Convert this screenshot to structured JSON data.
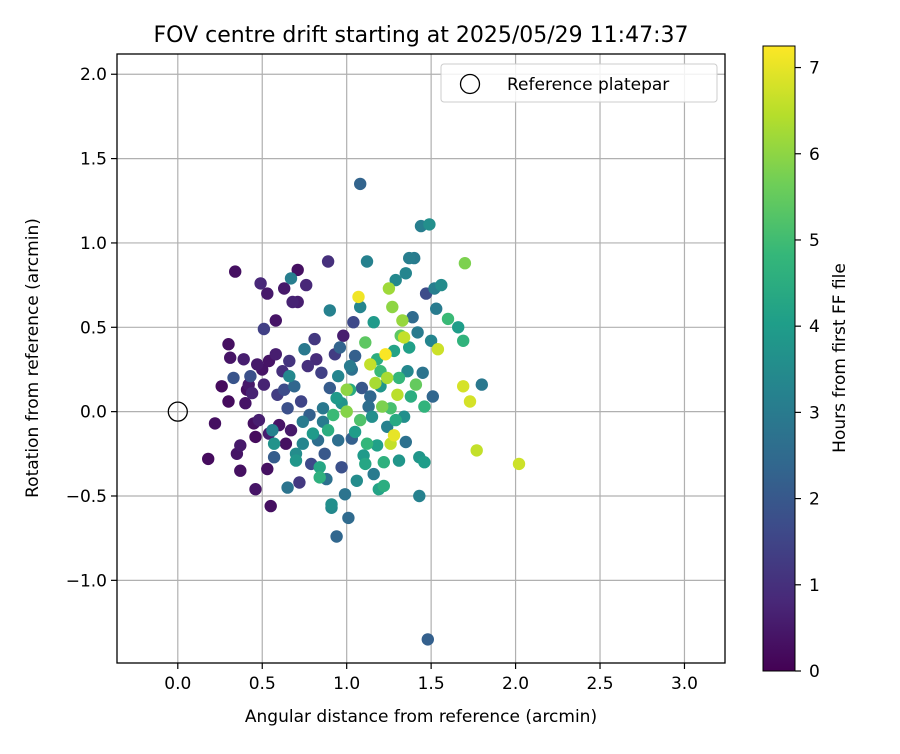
{
  "chart_data": {
    "type": "scatter",
    "title": "FOV centre drift starting at 2025/05/29 11:47:37",
    "xlabel": "Angular distance from reference (arcmin)",
    "ylabel": "Rotation from reference (arcmin)",
    "xlim": [
      -0.36,
      3.24
    ],
    "ylim": [
      -1.49,
      2.12
    ],
    "x_ticks": [
      "0.0",
      "0.5",
      "1.0",
      "1.5",
      "2.0",
      "2.5",
      "3.0"
    ],
    "x_tick_values": [
      0,
      0.5,
      1,
      1.5,
      2,
      2.5,
      3
    ],
    "y_ticks": [
      "−1.0",
      "−0.5",
      "0.0",
      "0.5",
      "1.0",
      "1.5",
      "2.0"
    ],
    "y_tick_values": [
      -1,
      -0.5,
      0,
      0.5,
      1,
      1.5,
      2
    ],
    "grid": true,
    "legend": {
      "entry": "Reference platepar",
      "marker": "open-circle",
      "placement": "top-right"
    },
    "reference": {
      "x": 0.0,
      "y": 0.0
    },
    "colorbar": {
      "label": "Hours from first FF file",
      "colormap": "viridis",
      "range": [
        0,
        7.25
      ],
      "ticks": [
        "0",
        "1",
        "2",
        "3",
        "4",
        "5",
        "6",
        "7"
      ],
      "tick_values": [
        0,
        1,
        2,
        3,
        4,
        5,
        6,
        7
      ],
      "stops": [
        "#440154",
        "#482878",
        "#3e4989",
        "#31688e",
        "#26828e",
        "#1f9e89",
        "#35b779",
        "#6ece58",
        "#b5de2b",
        "#fde725"
      ]
    },
    "points": [
      [
        0.18,
        -0.28,
        0.2
      ],
      [
        0.22,
        -0.07,
        0.3
      ],
      [
        0.26,
        0.15,
        0.2
      ],
      [
        0.3,
        0.4,
        0.3
      ],
      [
        0.31,
        0.32,
        0.4
      ],
      [
        0.3,
        0.06,
        0.2
      ],
      [
        0.33,
        0.2,
        1.9
      ],
      [
        0.34,
        0.83,
        0.3
      ],
      [
        0.35,
        -0.25,
        0.4
      ],
      [
        0.37,
        -0.2,
        0.5
      ],
      [
        0.37,
        -0.35,
        0.3
      ],
      [
        0.39,
        0.31,
        0.6
      ],
      [
        0.4,
        0.05,
        0.4
      ],
      [
        0.41,
        0.13,
        0.3
      ],
      [
        0.42,
        0.16,
        0.5
      ],
      [
        0.43,
        0.21,
        1.8
      ],
      [
        0.44,
        0.11,
        0.7
      ],
      [
        0.45,
        -0.07,
        0.3
      ],
      [
        0.46,
        -0.46,
        0.4
      ],
      [
        0.46,
        -0.15,
        0.2
      ],
      [
        0.47,
        0.28,
        0.5
      ],
      [
        0.48,
        -0.05,
        0.6
      ],
      [
        0.49,
        0.76,
        0.8
      ],
      [
        0.5,
        0.25,
        0.4
      ],
      [
        0.51,
        0.16,
        0.7
      ],
      [
        0.51,
        0.49,
        1.4
      ],
      [
        0.53,
        0.7,
        0.5
      ],
      [
        0.53,
        -0.34,
        0.3
      ],
      [
        0.54,
        0.3,
        0.4
      ],
      [
        0.54,
        -0.13,
        0.6
      ],
      [
        0.55,
        -0.56,
        0.3
      ],
      [
        0.56,
        -0.11,
        3.2
      ],
      [
        0.57,
        -0.19,
        3.7
      ],
      [
        0.57,
        -0.27,
        2.1
      ],
      [
        0.58,
        0.54,
        0.4
      ],
      [
        0.58,
        0.34,
        0.6
      ],
      [
        0.59,
        0.1,
        1.3
      ],
      [
        0.6,
        -0.08,
        0.4
      ],
      [
        0.62,
        0.24,
        1.0
      ],
      [
        0.63,
        0.73,
        0.5
      ],
      [
        0.63,
        0.13,
        1.7
      ],
      [
        0.64,
        -0.19,
        0.3
      ],
      [
        0.65,
        0.02,
        1.8
      ],
      [
        0.65,
        -0.45,
        2.8
      ],
      [
        0.66,
        0.3,
        1.1
      ],
      [
        0.66,
        0.21,
        3.4
      ],
      [
        0.67,
        -0.11,
        0.5
      ],
      [
        0.67,
        0.79,
        3.1
      ],
      [
        0.68,
        0.65,
        0.7
      ],
      [
        0.69,
        0.15,
        2.4
      ],
      [
        0.7,
        -0.25,
        3.5
      ],
      [
        0.7,
        -0.29,
        3.8
      ],
      [
        0.71,
        0.65,
        0.6
      ],
      [
        0.71,
        0.84,
        0.3
      ],
      [
        0.72,
        -0.42,
        1.2
      ],
      [
        0.73,
        0.06,
        1.5
      ],
      [
        0.74,
        -0.19,
        3.3
      ],
      [
        0.75,
        0.37,
        2.9
      ],
      [
        0.76,
        0.75,
        0.8
      ],
      [
        0.77,
        0.27,
        1.0
      ],
      [
        0.78,
        -0.02,
        2.2
      ],
      [
        0.79,
        -0.31,
        1.6
      ],
      [
        0.8,
        -0.13,
        3.9
      ],
      [
        0.81,
        0.43,
        1.2
      ],
      [
        0.82,
        0.31,
        0.9
      ],
      [
        0.83,
        -0.17,
        2.6
      ],
      [
        0.84,
        -0.33,
        4.3
      ],
      [
        0.84,
        -0.39,
        4.6
      ],
      [
        0.85,
        0.23,
        1.4
      ],
      [
        0.86,
        -0.06,
        3.0
      ],
      [
        0.87,
        -0.25,
        2.0
      ],
      [
        0.88,
        -0.4,
        2.7
      ],
      [
        0.89,
        0.89,
        1.0
      ],
      [
        0.9,
        0.14,
        2.1
      ],
      [
        0.9,
        0.6,
        3.2
      ],
      [
        0.91,
        -0.55,
        3.6
      ],
      [
        0.91,
        -0.57,
        3.4
      ],
      [
        0.92,
        -0.02,
        4.9
      ],
      [
        0.93,
        0.34,
        1.3
      ],
      [
        0.94,
        0.08,
        3.9
      ],
      [
        0.94,
        -0.74,
        2.4
      ],
      [
        0.95,
        -0.17,
        2.6
      ],
      [
        0.96,
        0.38,
        2.3
      ],
      [
        0.97,
        -0.33,
        1.8
      ],
      [
        0.98,
        0.45,
        0.6
      ],
      [
        0.99,
        -0.49,
        2.8
      ],
      [
        1.0,
        0.13,
        6.0
      ],
      [
        1.0,
        0.0,
        5.9
      ],
      [
        1.01,
        -0.63,
        2.5
      ],
      [
        1.02,
        0.27,
        3.0
      ],
      [
        1.03,
        -0.16,
        2.2
      ],
      [
        1.04,
        0.53,
        1.6
      ],
      [
        1.05,
        0.33,
        2.2
      ],
      [
        1.06,
        -0.41,
        3.5
      ],
      [
        1.07,
        0.68,
        7.1
      ],
      [
        1.08,
        1.35,
        2.3
      ],
      [
        1.08,
        0.62,
        3.3
      ],
      [
        1.09,
        0.14,
        2.0
      ],
      [
        1.1,
        -0.26,
        3.9
      ],
      [
        1.11,
        0.41,
        5.4
      ],
      [
        1.12,
        0.89,
        3.2
      ],
      [
        1.12,
        -0.19,
        4.8
      ],
      [
        1.13,
        0.03,
        2.6
      ],
      [
        1.14,
        0.28,
        6.6
      ],
      [
        1.15,
        -0.03,
        3.6
      ],
      [
        1.16,
        0.53,
        3.9
      ],
      [
        1.17,
        0.17,
        6.3
      ],
      [
        1.18,
        -0.2,
        4.1
      ],
      [
        1.19,
        -0.46,
        4.2
      ],
      [
        1.2,
        0.24,
        4.9
      ],
      [
        1.21,
        0.03,
        5.8
      ],
      [
        1.22,
        -0.44,
        4.5
      ],
      [
        1.23,
        0.34,
        7.2
      ],
      [
        1.24,
        0.2,
        6.3
      ],
      [
        1.25,
        0.73,
        6.2
      ],
      [
        1.26,
        -0.19,
        6.6
      ],
      [
        1.27,
        0.62,
        6.0
      ],
      [
        1.28,
        -0.14,
        7.0
      ],
      [
        1.29,
        0.78,
        3.4
      ],
      [
        1.3,
        0.1,
        6.5
      ],
      [
        1.31,
        -0.29,
        3.8
      ],
      [
        1.32,
        0.45,
        5.4
      ],
      [
        1.33,
        0.54,
        6.1
      ],
      [
        1.34,
        0.44,
        6.6
      ],
      [
        1.35,
        0.82,
        3.3
      ],
      [
        1.36,
        0.24,
        3.4
      ],
      [
        1.37,
        0.91,
        3.1
      ],
      [
        1.38,
        0.09,
        4.5
      ],
      [
        1.39,
        0.56,
        2.5
      ],
      [
        1.4,
        0.91,
        3.0
      ],
      [
        1.41,
        0.16,
        5.5
      ],
      [
        1.42,
        0.47,
        3.0
      ],
      [
        1.43,
        -0.5,
        3.2
      ],
      [
        1.43,
        -0.27,
        3.8
      ],
      [
        1.44,
        1.1,
        3.1
      ],
      [
        1.45,
        0.23,
        2.8
      ],
      [
        1.46,
        0.03,
        4.7
      ],
      [
        1.47,
        0.7,
        1.7
      ],
      [
        1.48,
        -1.35,
        2.2
      ],
      [
        1.49,
        1.11,
        3.6
      ],
      [
        1.5,
        0.42,
        3.3
      ],
      [
        1.51,
        0.09,
        2.4
      ],
      [
        1.52,
        0.73,
        3.1
      ],
      [
        1.53,
        0.61,
        3.0
      ],
      [
        1.54,
        0.37,
        6.7
      ],
      [
        1.56,
        0.75,
        3.5
      ],
      [
        1.6,
        0.55,
        4.9
      ],
      [
        1.66,
        0.5,
        4.0
      ],
      [
        1.69,
        0.15,
        6.8
      ],
      [
        1.69,
        0.42,
        4.7
      ],
      [
        1.7,
        0.88,
        5.8
      ],
      [
        1.73,
        0.06,
        6.8
      ],
      [
        1.77,
        -0.23,
        6.6
      ],
      [
        1.8,
        0.16,
        2.9
      ],
      [
        2.02,
        -0.31,
        6.7
      ],
      [
        1.02,
        0.13,
        4.4
      ],
      [
        1.05,
        -0.12,
        4.0
      ],
      [
        1.14,
        0.09,
        2.4
      ],
      [
        1.18,
        0.31,
        4.5
      ],
      [
        1.26,
        0.02,
        5.1
      ],
      [
        1.29,
        -0.05,
        4.4
      ],
      [
        1.34,
        -0.03,
        3.6
      ],
      [
        0.97,
        0.05,
        3.7
      ],
      [
        1.08,
        -0.05,
        5.2
      ],
      [
        1.22,
        -0.3,
        4.6
      ],
      [
        1.31,
        0.2,
        4.8
      ],
      [
        0.86,
        0.02,
        2.9
      ],
      [
        1.37,
        0.38,
        4.1
      ],
      [
        1.16,
        -0.37,
        3.0
      ],
      [
        1.24,
        -0.09,
        3.2
      ],
      [
        0.89,
        -0.11,
        4.5
      ],
      [
        1.03,
        0.25,
        2.7
      ],
      [
        1.2,
        0.15,
        3.8
      ],
      [
        1.11,
        -0.31,
        4.3
      ],
      [
        1.28,
        0.36,
        4.2
      ],
      [
        0.95,
        0.21,
        3.3
      ],
      [
        0.74,
        -0.06,
        3.0
      ],
      [
        1.35,
        -0.18,
        2.7
      ],
      [
        1.46,
        -0.3,
        4.0
      ]
    ]
  }
}
